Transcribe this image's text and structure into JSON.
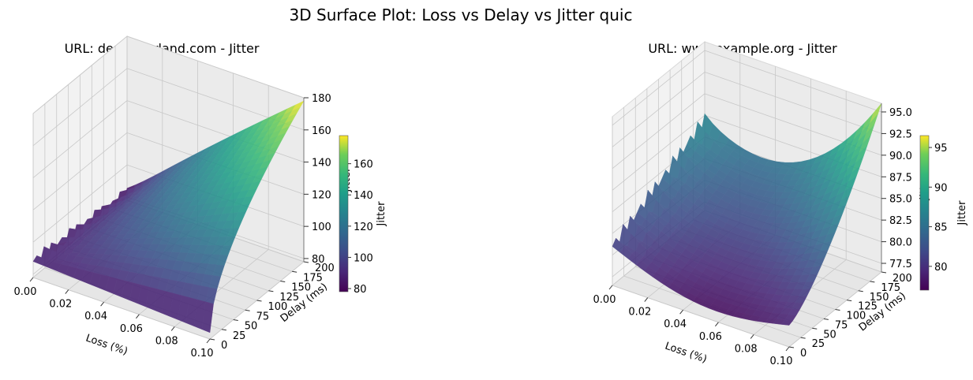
{
  "figure": {
    "title": "3D Surface Plot: Loss vs Delay vs Jitter quic"
  },
  "chart_data": [
    {
      "type": "surface3d",
      "title": "URL: demo.borland.com - Jitter",
      "xlabel": "Loss (%)",
      "ylabel": "Delay (ms)",
      "zlabel": "Jitter",
      "colormap": "viridis",
      "xlim": [
        0,
        0.1
      ],
      "ylim": [
        0,
        200
      ],
      "zlim": [
        78,
        180
      ],
      "xticks": [
        "0.00",
        "0.02",
        "0.04",
        "0.06",
        "0.08",
        "0.10"
      ],
      "yticks": [
        "0",
        "25",
        "50",
        "75",
        "100",
        "125",
        "150",
        "175",
        "200"
      ],
      "zticks": [
        "80",
        "100",
        "120",
        "140",
        "160",
        "180"
      ],
      "colorbar": {
        "label": "Jitter",
        "range": [
          78,
          178
        ],
        "ticks": [
          "80",
          "100",
          "120",
          "140",
          "160"
        ]
      },
      "surface": {
        "loss": [
          0,
          0.1
        ],
        "delay": [
          0,
          200
        ],
        "corner_jitter": {
          "loss0_delay0": 90,
          "loss0_delay200": 82,
          "loss0.1_delay0": 90,
          "loss0.1_delay200": 178
        },
        "ripples_near_zero_loss": true
      }
    },
    {
      "type": "surface3d",
      "title": "URL: www.example.org - Jitter",
      "xlabel": "Loss (%)",
      "ylabel": "Delay (ms)",
      "zlabel": "Jitter",
      "colormap": "viridis",
      "xlim": [
        0,
        0.1
      ],
      "ylim": [
        0,
        200
      ],
      "zlim": [
        76.5,
        96
      ],
      "xticks": [
        "0.00",
        "0.02",
        "0.04",
        "0.06",
        "0.08",
        "0.10"
      ],
      "yticks": [
        "0",
        "25",
        "50",
        "75",
        "100",
        "125",
        "150",
        "175",
        "200"
      ],
      "zticks": [
        "77.5",
        "80.0",
        "82.5",
        "85.0",
        "87.5",
        "90.0",
        "92.5",
        "95.0"
      ],
      "colorbar": {
        "label": "Jitter",
        "range": [
          77,
          96.5
        ],
        "ticks": [
          "80",
          "85",
          "90",
          "95"
        ]
      },
      "surface": {
        "loss": [
          0,
          0.1
        ],
        "delay": [
          0,
          200
        ],
        "corner_jitter": {
          "loss0_delay0": 81,
          "loss0_delay200": 89,
          "loss0.1_delay0": 79,
          "loss0.1_delay200": 96
        },
        "ripples_near_zero_loss": true
      }
    }
  ]
}
